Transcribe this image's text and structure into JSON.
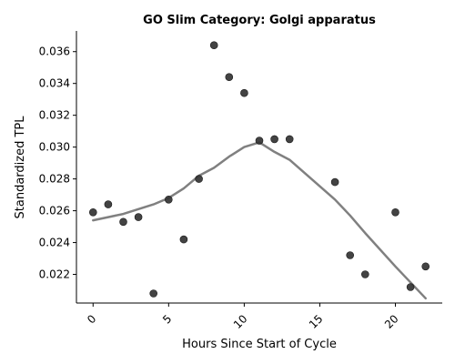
{
  "chart_data": {
    "type": "scatter",
    "title": "GO Slim Category: Golgi apparatus",
    "xlabel": "Hours Since Start of Cycle",
    "ylabel": "Standardized TPL",
    "xlim": [
      -1.1,
      23.1
    ],
    "ylim": [
      0.0202,
      0.0373
    ],
    "xticks": [
      0,
      5,
      10,
      15,
      20
    ],
    "xtick_labels": [
      "0",
      "5",
      "10",
      "15",
      "20"
    ],
    "xtick_rotation": 45,
    "yticks": [
      0.022,
      0.024,
      0.026,
      0.028,
      0.03,
      0.032,
      0.034,
      0.036
    ],
    "ytick_labels": [
      "0.022",
      "0.024",
      "0.026",
      "0.028",
      "0.030",
      "0.032",
      "0.034",
      "0.036"
    ],
    "grid": false,
    "spines": [
      "left",
      "bottom"
    ],
    "colors": {
      "points": "#333333",
      "trend": "#808080"
    },
    "series": [
      {
        "type": "scatter",
        "x": [
          0,
          1,
          2,
          3,
          4,
          5,
          6,
          7,
          8,
          9,
          10,
          11,
          12,
          13,
          16,
          17,
          18,
          20,
          21,
          22
        ],
        "y": [
          0.0259,
          0.0264,
          0.0253,
          0.0256,
          0.0208,
          0.0267,
          0.0242,
          0.028,
          0.0364,
          0.0344,
          0.0334,
          0.0304,
          0.0305,
          0.0305,
          0.0278,
          0.0232,
          0.022,
          0.0259,
          0.0212,
          0.0225
        ]
      },
      {
        "type": "line",
        "x": [
          0,
          1,
          2,
          3,
          4,
          5,
          6,
          7,
          8,
          9,
          10,
          11,
          12,
          13,
          16,
          17,
          18,
          20,
          21,
          22
        ],
        "y": [
          0.0254,
          0.0256,
          0.0258,
          0.0261,
          0.0264,
          0.0268,
          0.0274,
          0.0282,
          0.0287,
          0.0294,
          0.03,
          0.0303,
          0.0297,
          0.0292,
          0.0267,
          0.0257,
          0.0246,
          0.0225,
          0.0215,
          0.0205
        ]
      }
    ]
  }
}
